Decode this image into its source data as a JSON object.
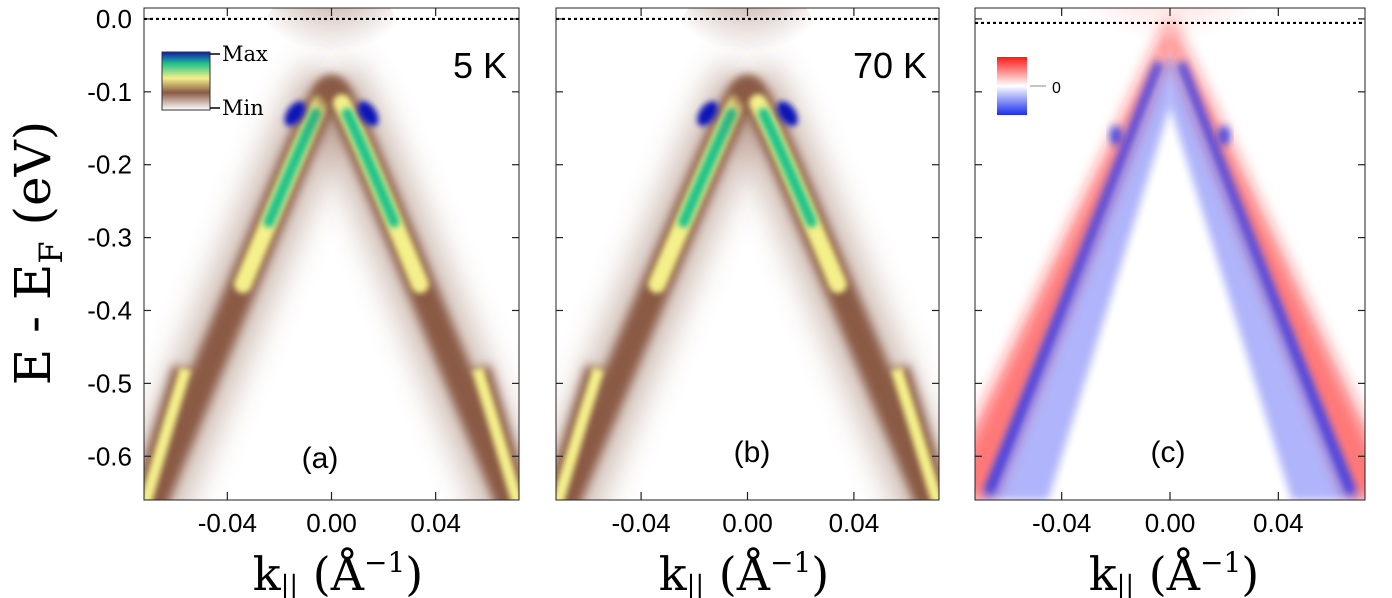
{
  "figure": {
    "y_axis_label_main": "E - E",
    "y_axis_label_sub": "F",
    "y_axis_label_unit": " (eV)",
    "x_axis_label_main": "k",
    "x_axis_label_sub": "||",
    "x_axis_label_unit_open": " (Å",
    "x_axis_label_unit_exp": "−1",
    "x_axis_label_unit_close": ")",
    "colors": {
      "intensity_low": "#ffffff",
      "intensity_mid": "#8a5a44",
      "intensity_high_1": "#f4f08a",
      "intensity_high_2": "#1ec38a",
      "intensity_max": "#1018b8",
      "diff_positive": "#ff1a1a",
      "diff_negative": "#1a2ef0",
      "fermi_line": "#000000"
    }
  },
  "chart_data": [
    {
      "type": "heatmap",
      "panel": "(a)",
      "temperature_label": "5 K",
      "title": "",
      "xlabel": "k|| (Å^-1)",
      "ylabel": "E - EF (eV)",
      "xlim": [
        -0.072,
        0.072
      ],
      "ylim": [
        -0.66,
        0.015
      ],
      "x_ticks": [
        -0.04,
        0.0,
        0.04
      ],
      "x_tick_labels": [
        "-0.04",
        "0.00",
        "0.04"
      ],
      "y_ticks": [
        0.0,
        -0.1,
        -0.2,
        -0.3,
        -0.4,
        -0.5,
        -0.6
      ],
      "y_tick_labels": [
        "0.0",
        "-0.1",
        "-0.2",
        "-0.3",
        "-0.4",
        "-0.5",
        "-0.6"
      ],
      "fermi_level": 0.0,
      "colorbar": {
        "max_label": "Max",
        "min_label": "Min",
        "location": "top-left"
      },
      "dirac_point_energy": -0.07,
      "max_intensity_points": [
        {
          "k": -0.014,
          "E": -0.13
        },
        {
          "k": 0.014,
          "E": -0.13
        }
      ]
    },
    {
      "type": "heatmap",
      "panel": "(b)",
      "temperature_label": "70 K",
      "title": "",
      "xlabel": "k|| (Å^-1)",
      "ylabel": "",
      "xlim": [
        -0.072,
        0.072
      ],
      "ylim": [
        -0.66,
        0.015
      ],
      "x_ticks": [
        -0.04,
        0.0,
        0.04
      ],
      "x_tick_labels": [
        "-0.04",
        "0.00",
        "0.04"
      ],
      "y_ticks": [
        0.0,
        -0.1,
        -0.2,
        -0.3,
        -0.4,
        -0.5,
        -0.6
      ],
      "fermi_level": 0.0,
      "dirac_point_energy": -0.07,
      "max_intensity_points": [
        {
          "k": -0.015,
          "E": -0.13
        },
        {
          "k": 0.015,
          "E": -0.13
        }
      ]
    },
    {
      "type": "heatmap",
      "panel": "(c)",
      "title": "",
      "xlabel": "k|| (Å^-1)",
      "ylabel": "",
      "xlim": [
        -0.072,
        0.072
      ],
      "ylim": [
        -0.66,
        0.015
      ],
      "x_ticks": [
        -0.04,
        0.0,
        0.04
      ],
      "x_tick_labels": [
        "-0.04",
        "0.00",
        "0.04"
      ],
      "y_ticks": [
        0.0,
        -0.1,
        -0.2,
        -0.3,
        -0.4,
        -0.5,
        -0.6
      ],
      "fermi_level": 0.0,
      "colorbar": {
        "zero_label": "0",
        "location": "top-left"
      },
      "description_values": {
        "positive_color": "red",
        "negative_color": "blue"
      }
    }
  ]
}
